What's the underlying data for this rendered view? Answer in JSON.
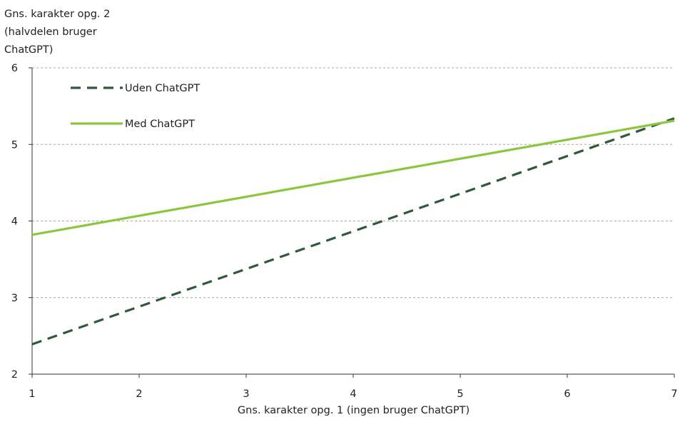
{
  "chart_data": {
    "type": "line",
    "ylabel_lines": [
      "Gns. karakter opg. 2",
      "(halvdelen bruger",
      "ChatGPT)"
    ],
    "xlabel": "Gns. karakter opg. 1 (ingen bruger ChatGPT)",
    "xlim": [
      1,
      7
    ],
    "ylim": [
      2,
      6
    ],
    "xticks": [
      "1",
      "2",
      "3",
      "4",
      "5",
      "6",
      "7"
    ],
    "yticks": [
      "2",
      "3",
      "4",
      "5",
      "6"
    ],
    "grid": "horizontal dashed",
    "legend_position": "top-left",
    "series": [
      {
        "name": "Uden ChatGPT",
        "style": "dashed",
        "color": "#2e5a3a",
        "x": [
          1,
          7
        ],
        "y": [
          2.39,
          5.34
        ]
      },
      {
        "name": "Med ChatGPT",
        "style": "solid",
        "color": "#8cc63f",
        "x": [
          1,
          7
        ],
        "y": [
          3.82,
          5.31
        ]
      }
    ]
  }
}
